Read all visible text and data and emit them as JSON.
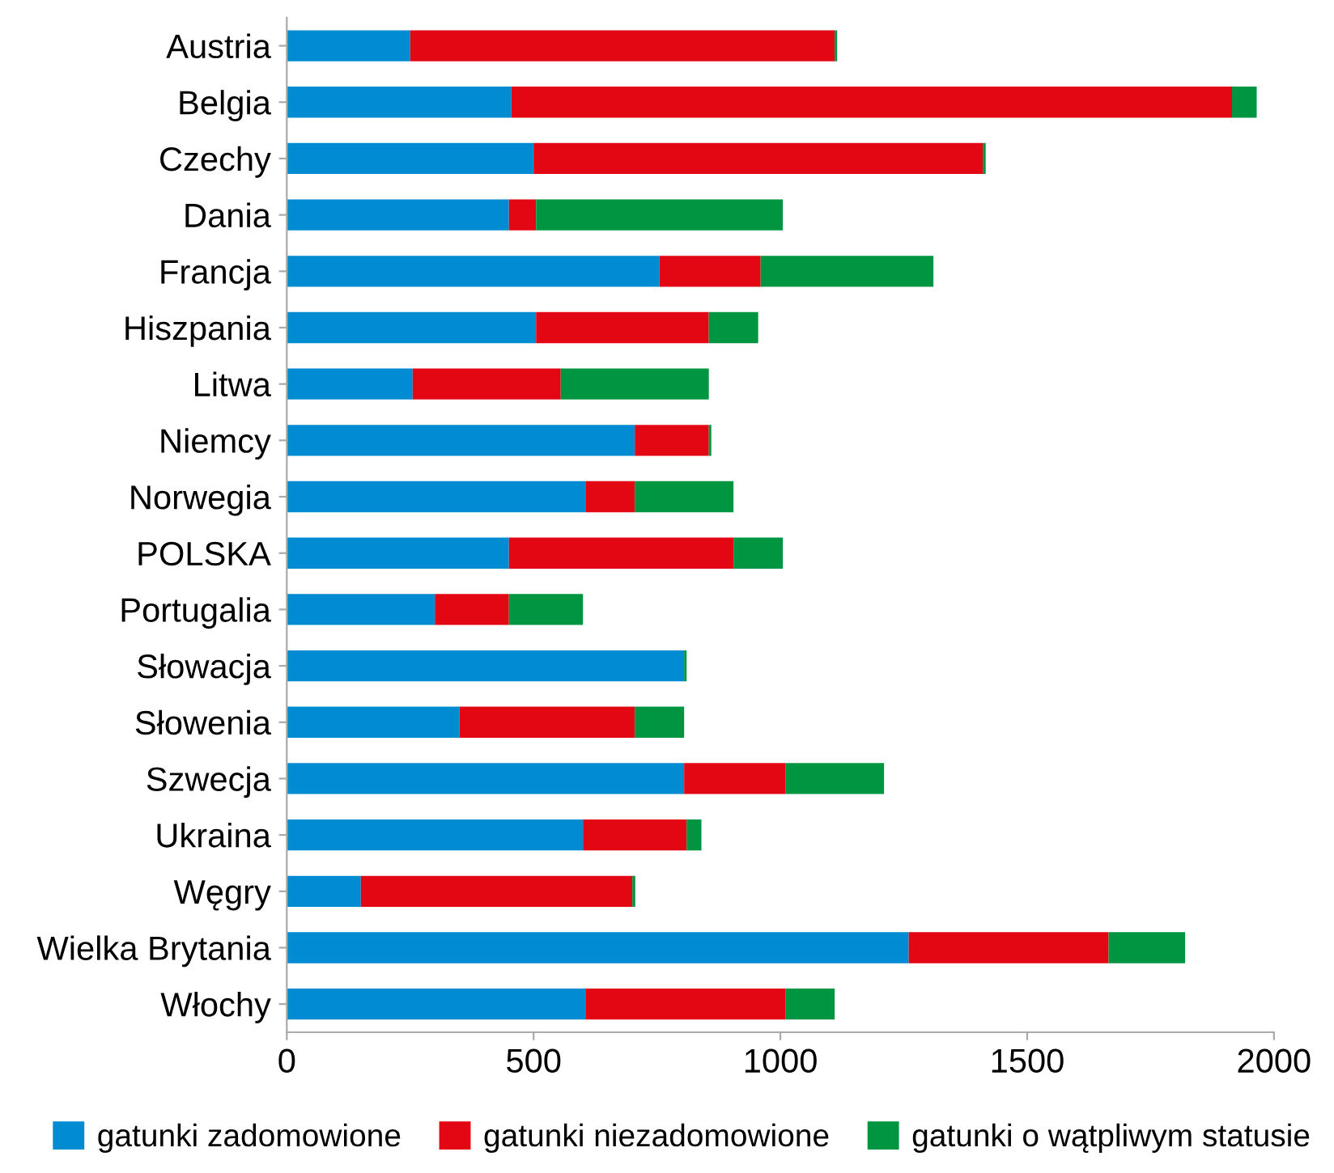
{
  "chart_data": {
    "type": "bar",
    "orientation": "horizontal",
    "stacked": true,
    "categories": [
      "Austria",
      "Belgia",
      "Czechy",
      "Dania",
      "Francja",
      "Hiszpania",
      "Litwa",
      "Niemcy",
      "Norwegia",
      "POLSKA",
      "Portugalia",
      "Słowacja",
      "Słowenia",
      "Szwecja",
      "Ukraina",
      "Węgry",
      "Wielka Brytania",
      "Włochy"
    ],
    "series": [
      {
        "name": "gatunki zadomowione",
        "color": "#008bd2",
        "values": [
          250,
          455,
          500,
          450,
          755,
          505,
          255,
          705,
          605,
          450,
          300,
          805,
          350,
          805,
          600,
          150,
          1260,
          605
        ]
      },
      {
        "name": "gatunki niezadomowione",
        "color": "#e30613",
        "values": [
          860,
          1460,
          910,
          55,
          205,
          350,
          300,
          150,
          100,
          455,
          150,
          0,
          355,
          205,
          210,
          550,
          405,
          405
        ]
      },
      {
        "name": "gatunki o wątpliwym statusie",
        "color": "#009540",
        "values": [
          5,
          50,
          6,
          500,
          350,
          100,
          300,
          5,
          200,
          100,
          150,
          5,
          100,
          200,
          30,
          6,
          155,
          100
        ]
      }
    ],
    "xlim": [
      0,
      2000
    ],
    "xticks": [
      0,
      500,
      1000,
      1500,
      2000
    ],
    "grid": false,
    "legend": "bottom"
  }
}
